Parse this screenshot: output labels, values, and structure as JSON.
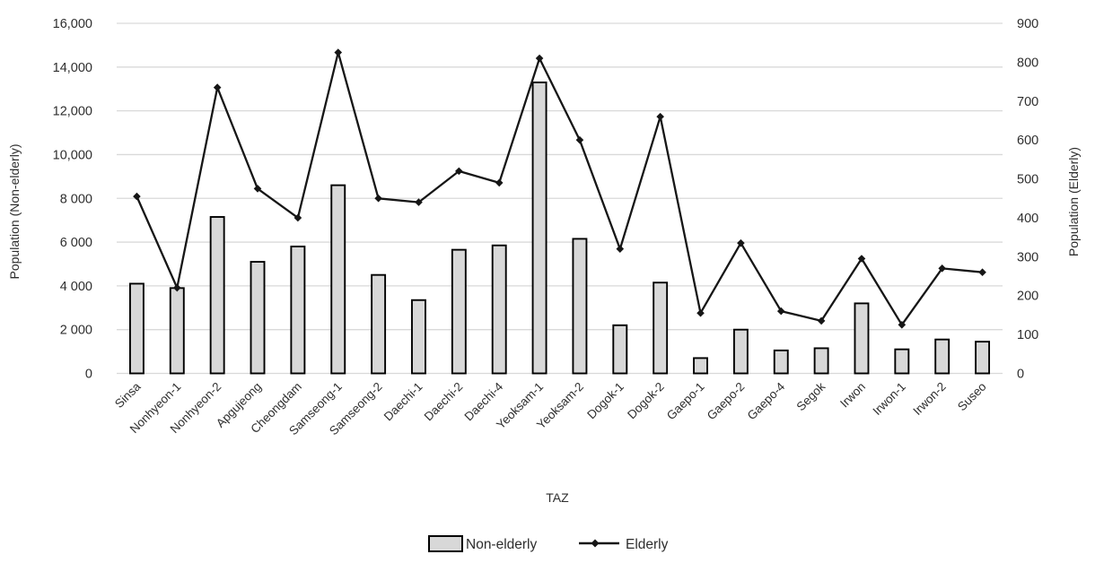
{
  "chart_data": {
    "type": "bar",
    "subtype": "combo-bar-line-dual-axis",
    "title": "",
    "xlabel": "TAZ",
    "categories": [
      "Sinsa",
      "Nonhyeon-1",
      "Nonhyeon-2",
      "Apgujeong",
      "Cheongdam",
      "Samseong-1",
      "Samseong-2",
      "Daechi-1",
      "Daechi-2",
      "Daechi-4",
      "Yeoksam-1",
      "Yeoksam-2",
      "Dogok-1",
      "Dogok-2",
      "Gaepo-1",
      "Gaepo-2",
      "Gaepo-4",
      "Segok",
      "Irwon",
      "Irwon-1",
      "Irwon-2",
      "Suseo"
    ],
    "series": [
      {
        "name": "Non-elderly",
        "type": "bar",
        "axis": "left",
        "values": [
          4100,
          3900,
          7150,
          5100,
          5800,
          8600,
          4500,
          3350,
          5650,
          5850,
          13300,
          6150,
          2200,
          4150,
          700,
          2000,
          1050,
          1150,
          3200,
          1100,
          1550,
          1450
        ]
      },
      {
        "name": "Elderly",
        "type": "line",
        "axis": "right",
        "values": [
          455,
          220,
          735,
          475,
          400,
          825,
          450,
          440,
          520,
          490,
          810,
          600,
          320,
          660,
          155,
          335,
          160,
          135,
          295,
          125,
          270,
          260
        ]
      }
    ],
    "left_axis": {
      "title": "Population (Non-elderly)",
      "min": 0,
      "max": 16000,
      "tick_interval": 2000,
      "tick_labels_bottom_up": [
        "0",
        "2 000",
        "4 000",
        "6 000",
        "8 000",
        "10,000",
        "12,000",
        "14,000",
        "16,000"
      ]
    },
    "right_axis": {
      "title": "Population (Elderly)",
      "min": 0,
      "max": 900,
      "tick_interval": 100,
      "tick_labels_bottom_up": [
        "0",
        "100",
        "200",
        "300",
        "400",
        "500",
        "600",
        "700",
        "800",
        "900"
      ]
    },
    "legend": {
      "position": "bottom",
      "entries": [
        "Non-elderly",
        "Elderly"
      ]
    },
    "grid": true,
    "colors": {
      "bar_fill": "#d8d8d8",
      "bar_stroke": "#000000",
      "line": "#161616",
      "marker": "#161616",
      "grid": "#d9d9d9",
      "axis_line": "#d9d9d9",
      "text": "#2e2e2e",
      "background": "#ffffff"
    }
  }
}
